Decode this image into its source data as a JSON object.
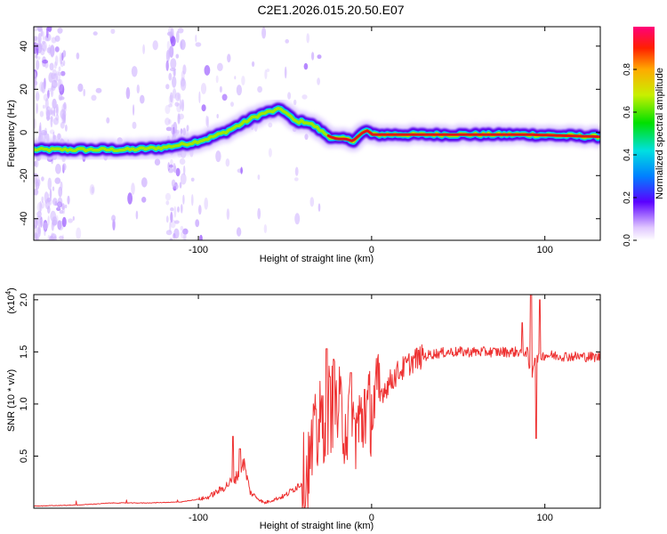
{
  "title": "C2E1.2026.015.20.50.E07",
  "chart_data": [
    {
      "type": "heatmap",
      "xlabel": "Height of straight line (km)",
      "ylabel": "Frequency (Hz)",
      "xlim": [
        -195,
        132
      ],
      "ylim": [
        -50,
        49
      ],
      "xticks": [
        -100,
        0,
        100
      ],
      "yticks": [
        -40,
        -20,
        0,
        20,
        40
      ],
      "ridge": {
        "x": [
          -195,
          -180,
          -160,
          -140,
          -120,
          -105,
          -95,
          -85,
          -75,
          -68,
          -62,
          -56,
          -52,
          -48,
          -44,
          -38,
          -33,
          -28,
          -24,
          -20,
          -15,
          -11,
          -8,
          -5,
          -2,
          0,
          10,
          30,
          60,
          90,
          132
        ],
        "freq": [
          -8,
          -8,
          -8,
          -8,
          -7,
          -5,
          -3,
          0,
          4,
          7,
          9,
          10,
          11,
          8,
          5,
          5,
          3,
          0,
          -2,
          -3,
          -3,
          -4,
          -2,
          0,
          1,
          -1,
          -1,
          -1,
          -1,
          -1,
          -2
        ]
      },
      "colorbar": {
        "label": "Normalized spectral amplitude",
        "ticks": [
          "0.0",
          "0.2",
          "0.4",
          "0.6",
          "0.8"
        ],
        "range": [
          0,
          1
        ]
      }
    },
    {
      "type": "line",
      "xlabel": "Height of straight line (km)",
      "ylabel": "SNR (10 * v/v)",
      "scale_label": "(x10",
      "scale_exp": "4",
      "scale_close": ")",
      "xlim": [
        -195,
        132
      ],
      "ylim": [
        0,
        2.05
      ],
      "xticks": [
        -100,
        0,
        100
      ],
      "yticks": [
        "0.5",
        "1.0",
        "1.5",
        "2.0"
      ],
      "color": "#ee3333",
      "envelope": {
        "x": [
          -195,
          -170,
          -150,
          -130,
          -110,
          -95,
          -85,
          -78,
          -74,
          -70,
          -62,
          -50,
          -40,
          -35,
          -32,
          -28,
          -25,
          -22,
          -18,
          -14,
          -10,
          -6,
          -2,
          5,
          15,
          25,
          35,
          45,
          60,
          75,
          85,
          90,
          92,
          94,
          96,
          100,
          110,
          132
        ],
        "y": [
          0.02,
          0.03,
          0.05,
          0.05,
          0.06,
          0.1,
          0.2,
          0.3,
          0.45,
          0.15,
          0.05,
          0.12,
          0.25,
          0.45,
          0.7,
          0.85,
          0.95,
          1.0,
          0.9,
          0.8,
          0.75,
          0.82,
          0.9,
          1.1,
          1.3,
          1.43,
          1.48,
          1.5,
          1.5,
          1.5,
          1.5,
          1.5,
          1.2,
          1.45,
          1.45,
          1.47,
          1.46,
          1.45
        ]
      },
      "peaks": [
        {
          "x": -80,
          "y": 0.69
        },
        {
          "x": -76,
          "y": 0.57
        },
        {
          "x": -32,
          "y": 0.95
        },
        {
          "x": -26,
          "y": 1.53
        },
        {
          "x": -22,
          "y": 1.43
        },
        {
          "x": -12,
          "y": 1.3
        },
        {
          "x": -4,
          "y": 1.14
        },
        {
          "x": 87,
          "y": 1.78
        },
        {
          "x": 92,
          "y": 2.05
        },
        {
          "x": 95,
          "y": 0.67
        },
        {
          "x": 97,
          "y": 2.0
        }
      ]
    }
  ]
}
